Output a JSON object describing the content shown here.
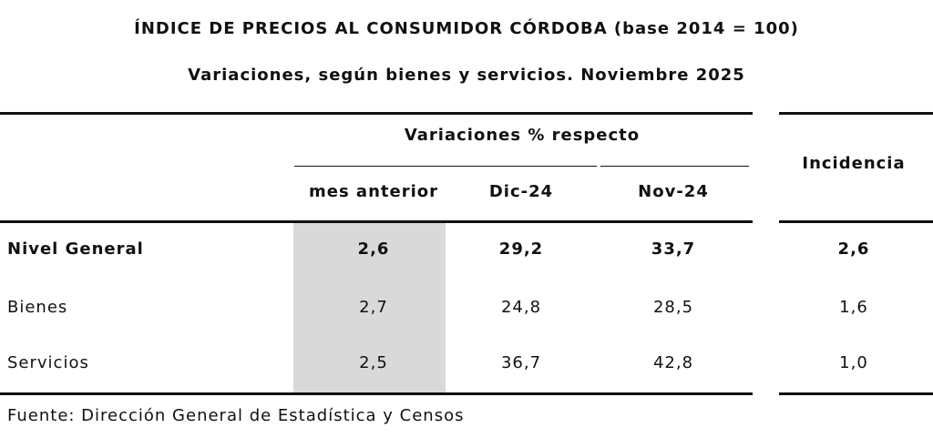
{
  "header": {
    "title": "ÍNDICE DE PRECIOS AL CONSUMIDOR CÓRDOBA (base 2014 = 100)",
    "subtitle": "Variaciones, según bienes y servicios. Noviembre 2025"
  },
  "table": {
    "group_header": "Variaciones % respecto",
    "columns": [
      "mes anterior",
      "Dic-24",
      "Nov-24"
    ],
    "incidence_header": "Incidencia",
    "rows": [
      [
        "Nivel General",
        "2,6",
        "29,2",
        "33,7",
        "2,6"
      ],
      [
        "Bienes",
        "2,7",
        "24,8",
        "28,5",
        "1,6"
      ],
      [
        "Servicios",
        "2,5",
        "36,7",
        "42,8",
        "1,0"
      ]
    ]
  },
  "footer": {
    "source": "Fuente: Dirección General de Estadística y Censos"
  }
}
